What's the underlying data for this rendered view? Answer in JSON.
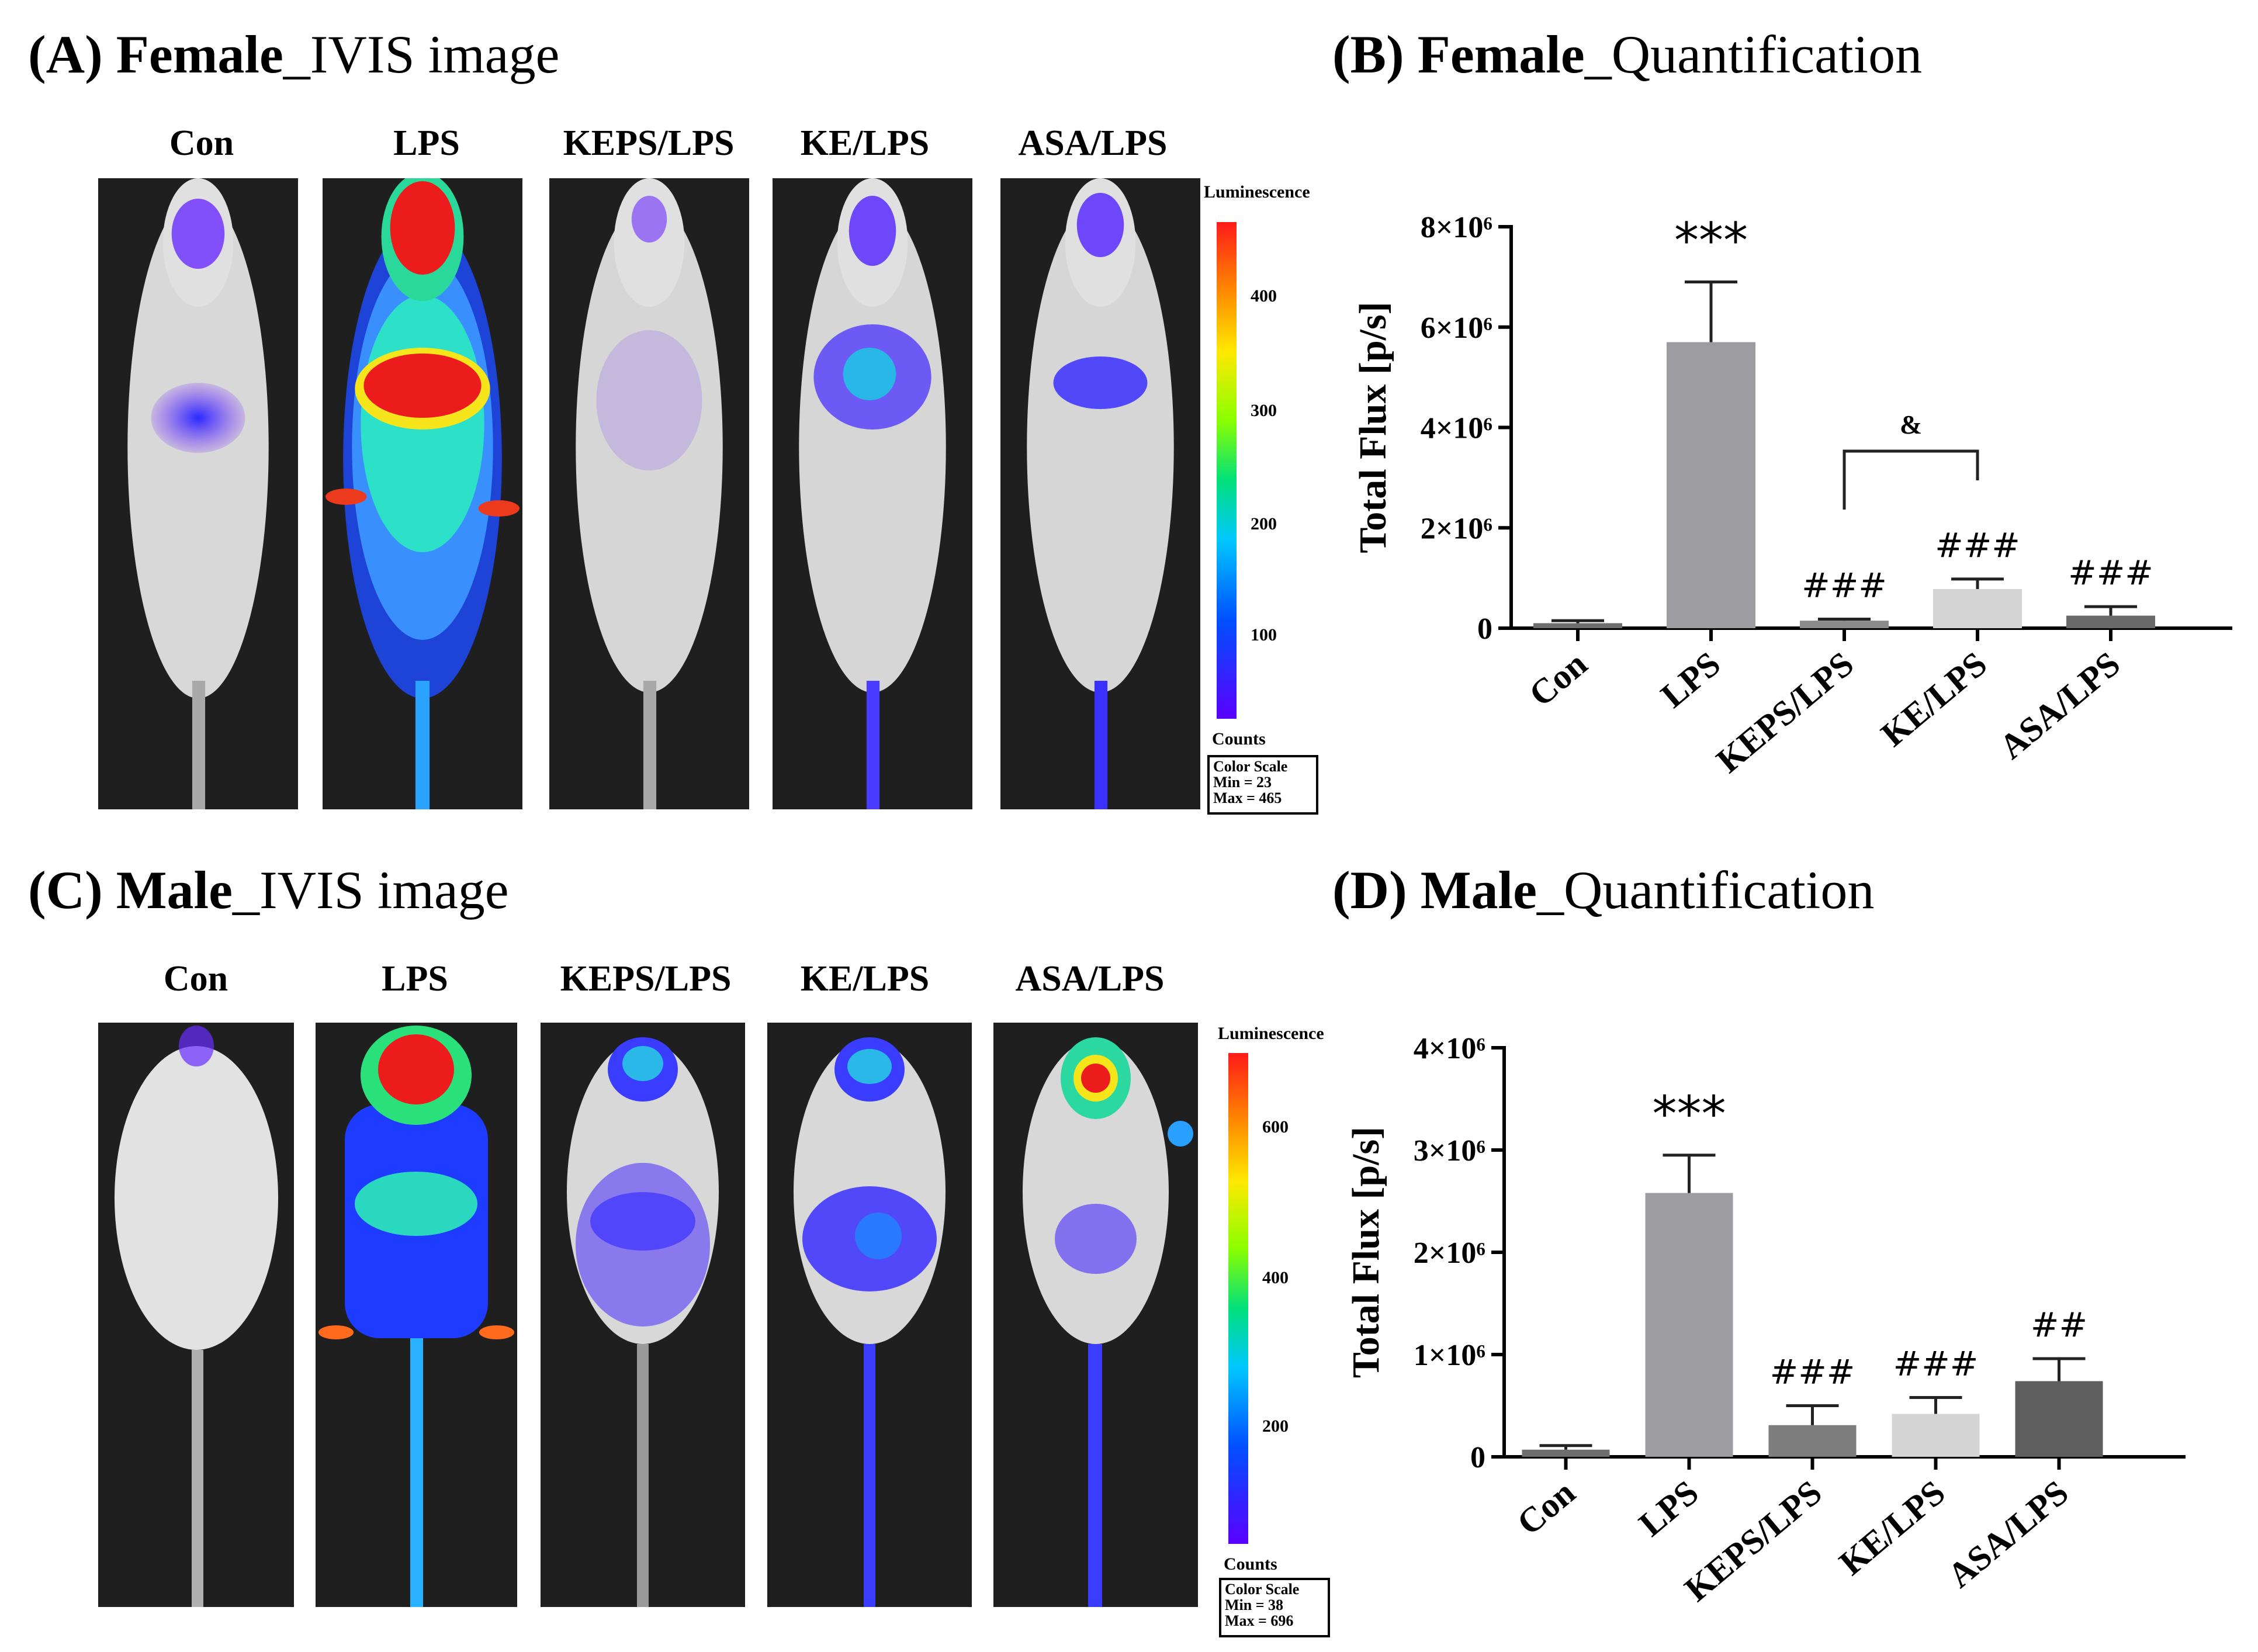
{
  "panels": {
    "A": {
      "letter": "(A)",
      "sex": "Female",
      "suffix": "_IVIS image"
    },
    "B": {
      "letter": "(B)",
      "sex": "Female",
      "suffix": "_Quantification"
    },
    "C": {
      "letter": "(C)",
      "sex": "Male",
      "suffix": "_IVIS image"
    },
    "D": {
      "letter": "(D)",
      "sex": "Male",
      "suffix": "_Quantification"
    }
  },
  "groups": [
    "Con",
    "LPS",
    "KEPS/LPS",
    "KE/LPS",
    "ASA/LPS"
  ],
  "female_scale": {
    "title": "Luminescence",
    "ticks": [
      "400",
      "300",
      "200",
      "100"
    ],
    "units": "Counts",
    "box_title": "Color Scale",
    "min": "Min = 23",
    "max": "Max = 465"
  },
  "male_scale": {
    "title": "Luminescence",
    "ticks": [
      "600",
      "400",
      "200"
    ],
    "units": "Counts",
    "box_title": "Color Scale",
    "min": "Min = 38",
    "max": "Max = 696"
  },
  "chart_data": [
    {
      "id": "female",
      "type": "bar",
      "title": "Female_Quantification",
      "ylabel": "Total Flux [p/s]",
      "xlabel": "",
      "categories": [
        "Con",
        "LPS",
        "KEPS/LPS",
        "KE/LPS",
        "ASA/LPS"
      ],
      "values": [
        100000,
        5700000,
        150000,
        780000,
        250000
      ],
      "errors": [
        50000,
        1200000,
        30000,
        200000,
        180000
      ],
      "colors": [
        "#6e6e6e",
        "#9d9da1",
        "#8a8a8a",
        "#d4d4d4",
        "#6a6a6a"
      ],
      "ylim": [
        0,
        8000000
      ],
      "yticks": [
        0,
        2000000,
        4000000,
        6000000,
        8000000
      ],
      "yticklabels": [
        "0",
        "2×10⁶",
        "4×10⁶",
        "6×10⁶",
        "8×10⁶"
      ],
      "annotations": [
        "",
        "***",
        "###",
        "###",
        "###"
      ],
      "bracket": {
        "from": 2,
        "to": 3,
        "label": "&"
      }
    },
    {
      "id": "male",
      "type": "bar",
      "title": "Male_Quantification",
      "ylabel": "Total Flux [p/s]",
      "xlabel": "",
      "categories": [
        "Con",
        "LPS",
        "KEPS/LPS",
        "KE/LPS",
        "ASA/LPS"
      ],
      "values": [
        70000,
        2580000,
        310000,
        420000,
        740000
      ],
      "errors": [
        40000,
        370000,
        190000,
        160000,
        220000
      ],
      "colors": [
        "#6e6e6e",
        "#9d9da1",
        "#7d7d7d",
        "#d4d4d4",
        "#5e5e5e"
      ],
      "ylim": [
        0,
        4000000
      ],
      "yticks": [
        0,
        1000000,
        2000000,
        3000000,
        4000000
      ],
      "yticklabels": [
        "0",
        "1×10⁶",
        "2×10⁶",
        "3×10⁶",
        "4×10⁶"
      ],
      "annotations": [
        "",
        "***",
        "###",
        "###",
        "##"
      ],
      "bracket": null
    }
  ]
}
